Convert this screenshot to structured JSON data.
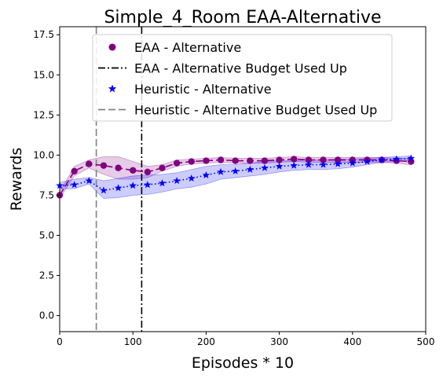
{
  "chart_data": {
    "type": "line",
    "title": "Simple_4_Room EAA-Alternative",
    "xlabel": "Episodes * 10",
    "ylabel": "Rewards",
    "xlim": [
      0,
      500
    ],
    "ylim": [
      -1.0,
      18.0
    ],
    "xticks": [
      0,
      100,
      200,
      300,
      400,
      500
    ],
    "xtick_labels": [
      "0",
      "100",
      "200",
      "300",
      "400",
      "500"
    ],
    "yticks": [
      0.0,
      2.5,
      5.0,
      7.5,
      10.0,
      12.5,
      15.0,
      17.5
    ],
    "ytick_labels": [
      "0.0",
      "2.5",
      "5.0",
      "7.5",
      "10.0",
      "12.5",
      "15.0",
      "17.5"
    ],
    "grid": false,
    "legend_position": "top-center",
    "series": [
      {
        "name": "EAA - Alternative",
        "color": "#800080",
        "marker": "circle",
        "line_style": "dashed",
        "x": [
          0,
          20,
          40,
          60,
          80,
          100,
          120,
          140,
          160,
          180,
          200,
          220,
          240,
          260,
          280,
          300,
          320,
          340,
          360,
          380,
          400,
          420,
          440,
          460,
          480
        ],
        "y": [
          7.5,
          9.0,
          9.45,
          9.35,
          9.2,
          9.05,
          8.95,
          9.2,
          9.5,
          9.6,
          9.65,
          9.7,
          9.65,
          9.65,
          9.65,
          9.7,
          9.75,
          9.7,
          9.7,
          9.7,
          9.7,
          9.7,
          9.7,
          9.65,
          9.6
        ],
        "lower": [
          7.3,
          8.7,
          9.2,
          8.8,
          8.5,
          8.5,
          8.6,
          9.0,
          9.3,
          9.45,
          9.5,
          9.55,
          9.5,
          9.5,
          9.5,
          9.55,
          9.6,
          9.55,
          9.55,
          9.55,
          9.55,
          9.55,
          9.55,
          9.5,
          9.4
        ],
        "upper": [
          7.7,
          9.3,
          9.7,
          9.9,
          9.9,
          9.6,
          9.3,
          9.4,
          9.7,
          9.75,
          9.8,
          9.85,
          9.8,
          9.8,
          9.8,
          9.85,
          9.9,
          9.85,
          9.85,
          9.85,
          9.85,
          9.85,
          9.85,
          9.8,
          9.8
        ]
      },
      {
        "name": "Heuristic - Alternative",
        "color": "#0000ff",
        "marker": "star",
        "line_style": "dotted",
        "x": [
          0,
          20,
          40,
          60,
          80,
          100,
          120,
          140,
          160,
          180,
          200,
          220,
          240,
          260,
          280,
          300,
          320,
          340,
          360,
          380,
          400,
          420,
          440,
          460,
          480
        ],
        "y": [
          8.1,
          8.15,
          8.4,
          7.8,
          7.95,
          8.1,
          8.15,
          8.25,
          8.4,
          8.55,
          8.75,
          8.95,
          9.0,
          9.1,
          9.2,
          9.3,
          9.35,
          9.4,
          9.4,
          9.45,
          9.5,
          9.6,
          9.7,
          9.75,
          9.8
        ],
        "lower": [
          7.9,
          7.9,
          8.2,
          7.3,
          7.35,
          7.5,
          7.55,
          7.7,
          7.9,
          8.0,
          8.2,
          8.5,
          8.6,
          8.7,
          8.8,
          8.95,
          9.05,
          9.1,
          9.1,
          9.15,
          9.25,
          9.4,
          9.55,
          9.6,
          9.65
        ],
        "upper": [
          8.3,
          8.5,
          8.6,
          8.4,
          8.55,
          8.7,
          8.75,
          8.8,
          8.9,
          9.1,
          9.3,
          9.4,
          9.4,
          9.5,
          9.6,
          9.65,
          9.65,
          9.7,
          9.7,
          9.75,
          9.75,
          9.8,
          9.85,
          9.9,
          9.95
        ]
      }
    ],
    "vlines": [
      {
        "name": "EAA - Alternative Budget Used Up",
        "x": 112,
        "color": "#000000",
        "line_style": "dashdot"
      },
      {
        "name": "Heuristic - Alternative Budget Used Up",
        "x": 50,
        "color": "#808080",
        "line_style": "dashed"
      }
    ],
    "legend": [
      {
        "label": "EAA - Alternative",
        "kind": "marker-circle",
        "color": "#800080"
      },
      {
        "label": "EAA - Alternative Budget Used Up",
        "kind": "line-dashdot",
        "color": "#000000"
      },
      {
        "label": "Heuristic - Alternative",
        "kind": "marker-star",
        "color": "#0000ff"
      },
      {
        "label": "Heuristic - Alternative Budget Used Up",
        "kind": "line-dashed",
        "color": "#808080"
      }
    ]
  }
}
